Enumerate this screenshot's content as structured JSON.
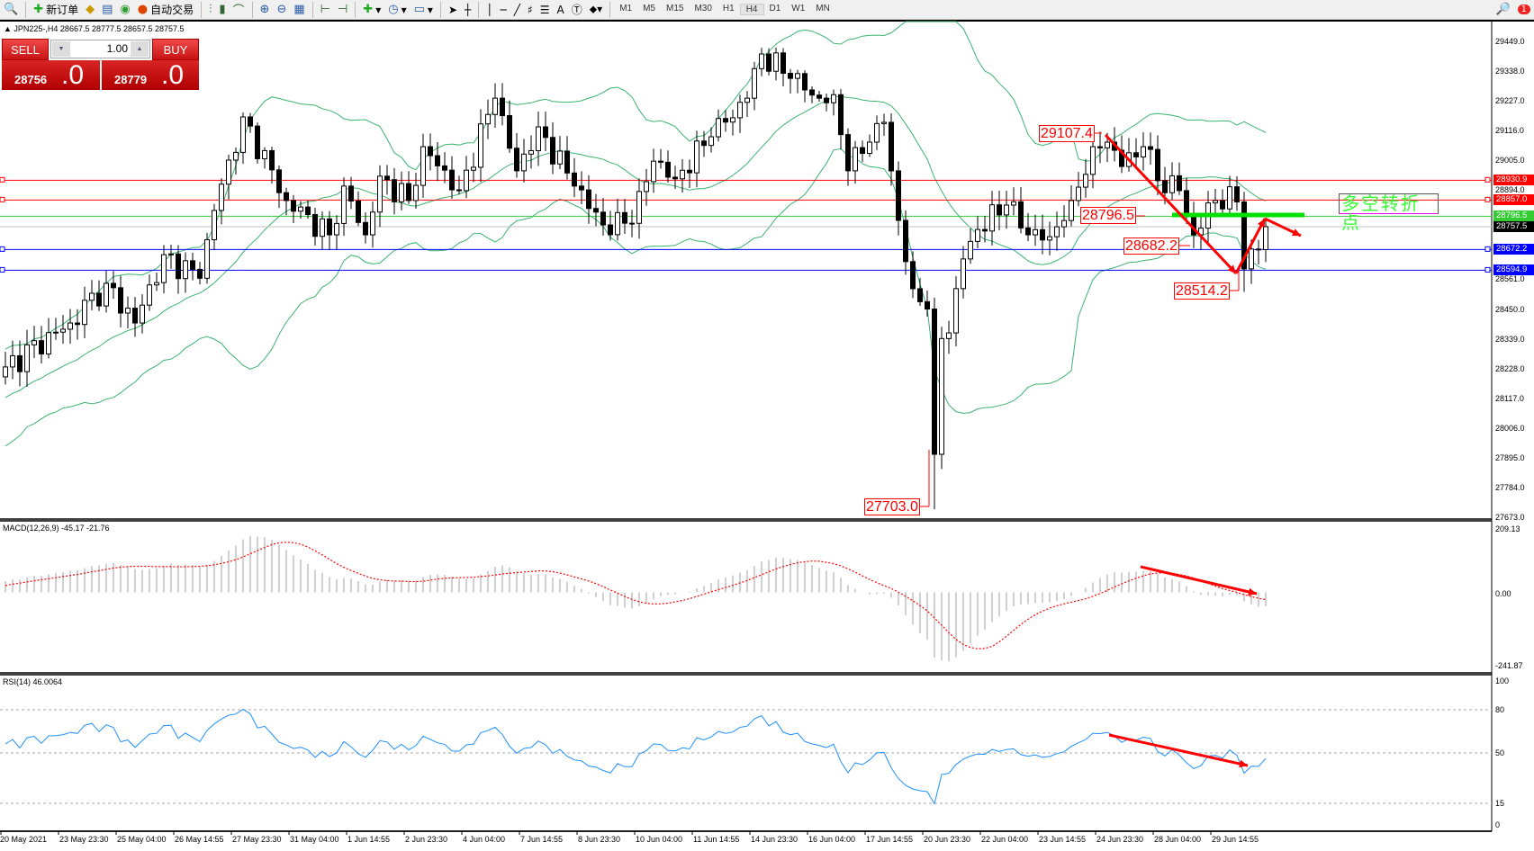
{
  "toolbar": {
    "new_order": "新订单",
    "auto_trading": "自动交易",
    "timeframes": [
      "M1",
      "M5",
      "M15",
      "M30",
      "H1",
      "H4",
      "D1",
      "W1",
      "MN"
    ],
    "active_timeframe": "H4",
    "draw_tools": [
      "A"
    ],
    "notification_count": "1"
  },
  "chart": {
    "header": "▲ JPN225-,H4  28667.5 28777.5 28657.5 28757.5",
    "one_click": {
      "sell_label": "SELL",
      "buy_label": "BUY",
      "lot": "1.00",
      "sell_price_main": "28756",
      "sell_price_frac": ".0",
      "buy_price_main": "28779",
      "buy_price_frac": ".0"
    },
    "price_axis": [
      "29449.0",
      "29338.0",
      "29227.0",
      "29116.0",
      "29005.0",
      "28894.0",
      "28561.0",
      "28450.0",
      "28339.0",
      "28228.0",
      "28117.0",
      "28006.0",
      "27895.0",
      "27784.0",
      "27673.0"
    ],
    "levels": [
      {
        "price": "28930.9",
        "color": "#ff0000"
      },
      {
        "price": "28857.0",
        "color": "#ff0000"
      },
      {
        "price": "28796.5",
        "color": "#33cc33"
      },
      {
        "price": "28757.5",
        "color": "#000000"
      },
      {
        "price": "28672.2",
        "color": "#0000ff"
      },
      {
        "price": "28594.9",
        "color": "#0000ff"
      }
    ],
    "annotations": [
      "29107.4",
      "28796.5",
      "28682.2",
      "28514.2",
      "27703.0"
    ],
    "turning_point_label": "多空转折点",
    "bollinger_color": "#3cb371",
    "close_anchors": [
      [
        -40,
        28450
      ],
      [
        -25,
        27800
      ],
      [
        -10,
        28150
      ],
      [
        0,
        28234
      ],
      [
        9,
        28398
      ],
      [
        14,
        28546
      ],
      [
        18,
        28398
      ],
      [
        22,
        28653
      ],
      [
        27,
        28565
      ],
      [
        29,
        28818
      ],
      [
        33,
        29167
      ],
      [
        39,
        28855
      ],
      [
        45,
        28727
      ],
      [
        47,
        28909
      ],
      [
        50,
        28727
      ],
      [
        52,
        28946
      ],
      [
        56,
        28855
      ],
      [
        58,
        29056
      ],
      [
        63,
        28892
      ],
      [
        68,
        29237
      ],
      [
        71,
        28966
      ],
      [
        74,
        29130
      ],
      [
        79,
        28909
      ],
      [
        83,
        28764
      ],
      [
        87,
        28770
      ],
      [
        90,
        29002
      ],
      [
        93,
        28936
      ],
      [
        98,
        29093
      ],
      [
        103,
        29237
      ],
      [
        105,
        29402
      ],
      [
        109,
        29311
      ],
      [
        113,
        29237
      ],
      [
        115,
        29250
      ],
      [
        117,
        28966
      ],
      [
        120,
        29073
      ],
      [
        122,
        29147
      ],
      [
        124,
        28781
      ],
      [
        126,
        28526
      ],
      [
        128,
        28450
      ],
      [
        129,
        27908
      ],
      [
        130,
        28340
      ],
      [
        131,
        28361
      ],
      [
        133,
        28637
      ],
      [
        135,
        28747
      ],
      [
        139,
        28838
      ],
      [
        142,
        28727
      ],
      [
        145,
        28720
      ],
      [
        148,
        28855
      ],
      [
        151,
        29056
      ],
      [
        153,
        29073
      ],
      [
        155,
        28982
      ],
      [
        158,
        29056
      ],
      [
        160,
        28929
      ],
      [
        163,
        28892
      ],
      [
        165,
        28727
      ],
      [
        168,
        28855
      ],
      [
        171,
        28850
      ],
      [
        172,
        28600
      ],
      [
        174,
        28672
      ],
      [
        175,
        28757.5
      ]
    ],
    "extremes": {
      "high_29107": 29107.4,
      "low_27703": 27703.0,
      "low_28514": 28514.2
    }
  },
  "macd": {
    "label": "MACD(12,26,9) -45.17 -21.76",
    "axis": [
      "209.13",
      "0.00",
      "-241.87"
    ],
    "range": [
      -241.87,
      209.13
    ],
    "signal_color": "#ff0000",
    "hist_color": "#a0a0a0"
  },
  "rsi": {
    "label": "RSI(14) 46.0064",
    "axis": [
      "100",
      "80",
      "50",
      "15",
      "0"
    ],
    "levels": [
      80,
      50,
      15
    ],
    "line_color": "#1e90ff"
  },
  "time_axis": [
    "20 May 2021",
    "23 May 23:30",
    "25 May 04:00",
    "26 May 14:55",
    "27 May 23:30",
    "31 May 04:00",
    "1 Jun 14:55",
    "2 Jun 23:30",
    "4 Jun 04:00",
    "7 Jun 14:55",
    "8 Jun 23:30",
    "10 Jun 04:00",
    "11 Jun 14:55",
    "14 Jun 23:30",
    "16 Jun 04:00",
    "17 Jun 14:55",
    "20 Jun 23:30",
    "22 Jun 04:00",
    "23 Jun 14:55",
    "24 Jun 23:30",
    "28 Jun 04:00",
    "29 Jun 14:55"
  ]
}
